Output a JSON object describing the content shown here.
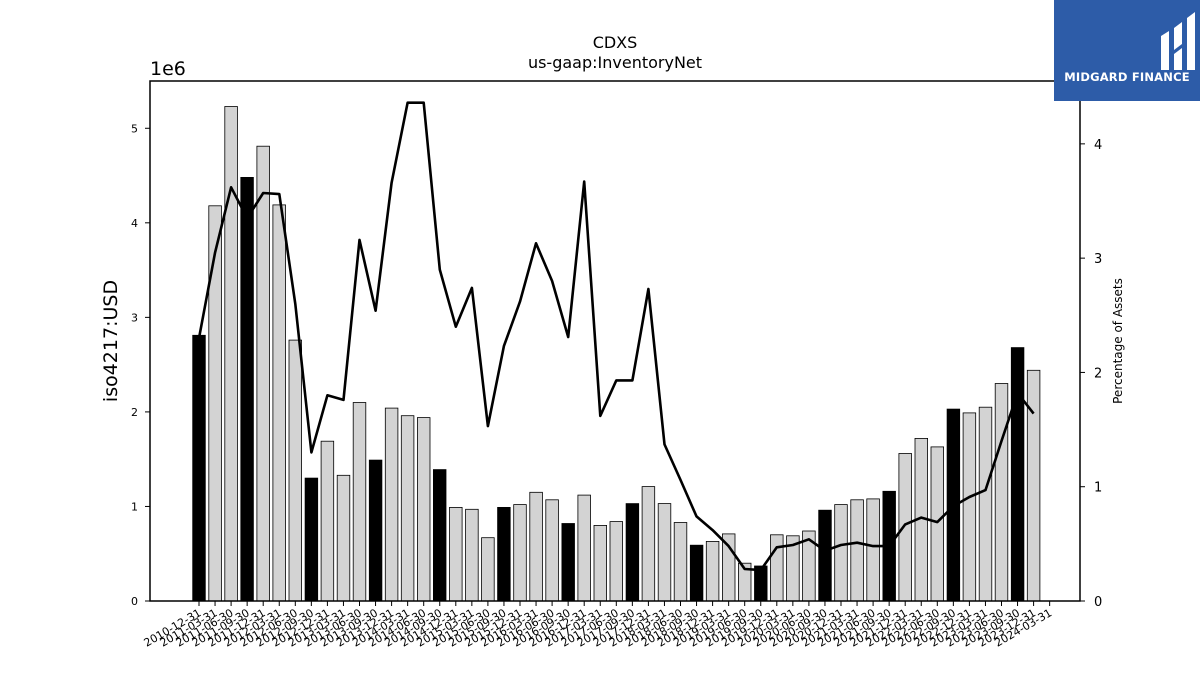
{
  "brand": {
    "name": "MIDGARD FINANCE",
    "bg_color": "#2d5ca8",
    "logo_icon": "midgard-m-logo-icon"
  },
  "chart_data": {
    "type": "bar",
    "title": "CDXS",
    "subtitle": "us-gaap:InventoryNet",
    "ylabel": "iso4217:USD",
    "y_offset_label": "1e6",
    "y2label": "Percentage of Assets",
    "ylim": [
      0,
      5500000
    ],
    "y2lim": [
      0,
      4.55
    ],
    "yticks": [
      "0",
      "1",
      "2",
      "3",
      "4",
      "5"
    ],
    "y2ticks": [
      "0",
      "1",
      "2",
      "3",
      "4"
    ],
    "grid": false,
    "colors": {
      "annual_bar": "#000000",
      "quarter_bar": "#d3d3d3",
      "line": "#000000"
    },
    "categories": [
      "2010-12-31",
      "2011-03-31",
      "2011-06-30",
      "2011-09-30",
      "2011-12-31",
      "2012-03-31",
      "2012-06-30",
      "2012-09-30",
      "2012-12-31",
      "2013-03-31",
      "2013-06-30",
      "2013-09-30",
      "2013-12-31",
      "2014-03-31",
      "2014-06-30",
      "2014-09-30",
      "2014-12-31",
      "2015-03-31",
      "2015-06-30",
      "2015-09-30",
      "2015-12-31",
      "2016-03-31",
      "2016-06-30",
      "2016-09-30",
      "2016-12-31",
      "2017-03-31",
      "2017-06-30",
      "2017-09-30",
      "2017-12-31",
      "2018-03-31",
      "2018-06-30",
      "2018-09-30",
      "2018-12-31",
      "2019-03-31",
      "2019-06-30",
      "2019-09-30",
      "2019-12-31",
      "2020-03-31",
      "2020-06-30",
      "2020-09-30",
      "2020-12-31",
      "2021-03-31",
      "2021-06-30",
      "2021-09-30",
      "2021-12-31",
      "2022-03-31",
      "2022-06-30",
      "2022-09-30",
      "2022-12-31",
      "2023-03-31",
      "2023-06-30",
      "2023-09-30",
      "2023-12-31",
      "2024-03-31"
    ],
    "series": [
      {
        "kind": "bar",
        "axis": "left",
        "values": [
          2810000,
          4180000,
          5230000,
          4480000,
          4810000,
          4190000,
          2760000,
          1300000,
          1690000,
          1330000,
          2100000,
          1490000,
          2040000,
          1960000,
          1940000,
          1390000,
          990000,
          970000,
          670000,
          990000,
          1020000,
          1150000,
          1070000,
          820000,
          1120000,
          800000,
          840000,
          1030000,
          1210000,
          1030000,
          830000,
          590000,
          630000,
          710000,
          400000,
          370000,
          700000,
          690000,
          740000,
          960000,
          1020000,
          1070000,
          1080000,
          1160000,
          1560000,
          1720000,
          1630000,
          2030000,
          1990000,
          2050000,
          2300000,
          2680000,
          2440000,
          0
        ],
        "annual": [
          true,
          false,
          false,
          true,
          false,
          false,
          false,
          true,
          false,
          false,
          false,
          true,
          false,
          false,
          false,
          true,
          false,
          false,
          false,
          true,
          false,
          false,
          false,
          true,
          false,
          false,
          false,
          true,
          false,
          false,
          false,
          true,
          false,
          false,
          false,
          true,
          false,
          false,
          false,
          true,
          false,
          false,
          false,
          true,
          false,
          false,
          false,
          true,
          false,
          false,
          false,
          true,
          false,
          false
        ]
      },
      {
        "kind": "line",
        "axis": "right",
        "values": [
          2.3,
          3.05,
          3.62,
          3.35,
          3.57,
          3.56,
          2.6,
          1.3,
          1.8,
          1.76,
          3.16,
          2.54,
          3.66,
          4.36,
          4.36,
          2.9,
          2.4,
          2.74,
          1.53,
          2.23,
          2.62,
          3.13,
          2.8,
          2.31,
          3.67,
          1.62,
          1.93,
          1.93,
          2.73,
          1.37,
          1.06,
          0.74,
          0.62,
          0.48,
          0.28,
          0.27,
          0.47,
          0.49,
          0.54,
          0.44,
          0.49,
          0.51,
          0.48,
          0.48,
          0.67,
          0.73,
          0.69,
          0.83,
          0.91,
          0.97,
          1.4,
          1.82,
          1.64,
          null
        ]
      }
    ]
  }
}
